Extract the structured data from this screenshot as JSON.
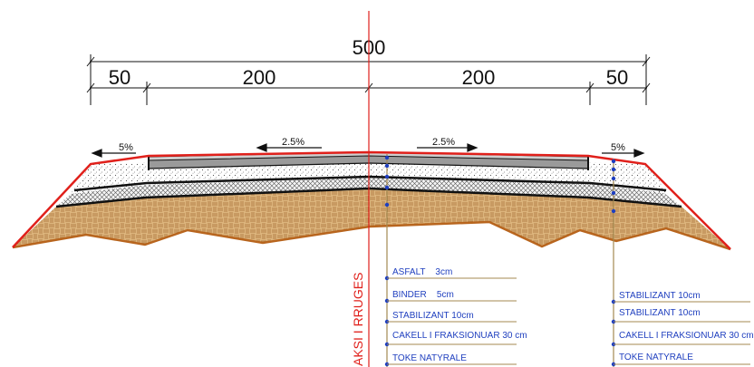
{
  "dimensions": {
    "total": "500",
    "left_shoulder": "50",
    "left_lane": "200",
    "right_lane": "200",
    "right_shoulder": "50"
  },
  "slopes": {
    "left_shoulder": "5%",
    "left_lane": "2.5%",
    "right_lane": "2.5%",
    "right_shoulder": "5%"
  },
  "axis_label": "AKSI I RRUGES",
  "center_layers": [
    "ASFALT    3cm",
    "BINDER    5cm",
    "STABILIZANT 10cm",
    "CAKELL I FRAKSIONUAR 30 cm",
    "TOKE NATYRALE"
  ],
  "shoulder_layers": [
    "STABILIZANT 10cm",
    "STABILIZANT 10cm",
    "CAKELL I FRAKSIONUAR 30 cm",
    "TOKE NATYRALE"
  ],
  "colors": {
    "axis_line": "#e0201b",
    "surface_line": "#e0201b",
    "label_text": "#1f3fbf",
    "subgrade": "#d9b27a",
    "subgrade_edge": "#b8651e",
    "leader_line": "#a48a52"
  }
}
